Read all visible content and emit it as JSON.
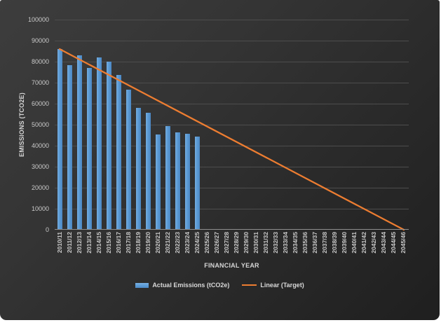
{
  "chart_data": {
    "type": "bar",
    "title": "",
    "categories": [
      "2010/11",
      "2011/12",
      "2012/13",
      "2013/14",
      "2014/15",
      "2015/16",
      "2016/17",
      "2017/18",
      "2018/19",
      "2019/20",
      "2020/21",
      "2021/22",
      "2022/23",
      "2023/24",
      "2024/25",
      "2025/26",
      "2026/27",
      "2027/28",
      "2028/29",
      "2029/30",
      "2030/31",
      "2031/32",
      "2032/33",
      "2033/34",
      "2034/35",
      "2035/36",
      "2036/37",
      "2037/38",
      "2038/39",
      "2039/40",
      "2040/41",
      "2041/42",
      "2042/43",
      "2043/44",
      "2044/45",
      "2045/46"
    ],
    "series": [
      {
        "name": "Actual Emissions (tCO2e)",
        "type": "bar",
        "color": "#5B9BD5",
        "values": [
          86000,
          78500,
          83000,
          77100,
          81900,
          79900,
          73800,
          66800,
          58000,
          55600,
          45300,
          49300,
          46500,
          45700,
          44500
        ]
      },
      {
        "name": "Linear (Target)",
        "type": "line",
        "color": "#ED7D31",
        "points": [
          {
            "x": "2010/11",
            "y": 86000
          },
          {
            "x": "2045/46",
            "y": 0
          }
        ]
      }
    ],
    "xlabel": "FINANCIAL YEAR",
    "ylabel": "EMISSIONS (TCO2E)",
    "ylim": [
      0,
      100000
    ],
    "ytick_step": 10000,
    "grid": "horizontal-only",
    "legend_position": "bottom"
  },
  "colors": {
    "chart_background_top": "#3d3d3d",
    "chart_background_bottom": "#1f1f1f",
    "gridline": "#4d4d4d",
    "axis_line": "#8f8f8f",
    "tick_text": "#c9c9c9",
    "bar_fill": "#5B9BD5",
    "target_line": "#ED7D31",
    "page_background": "#ffffff"
  }
}
